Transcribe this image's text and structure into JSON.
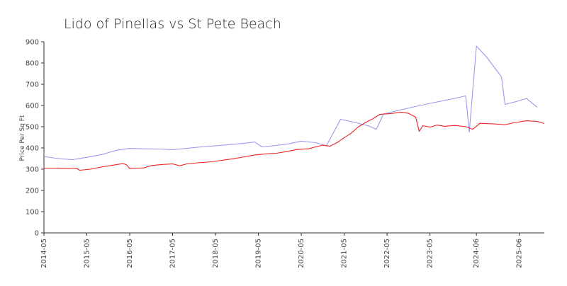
{
  "chart_data": {
    "type": "line",
    "title": "Lido of Pinellas vs St Pete Beach",
    "xlabel": "",
    "ylabel": "Price Per Sq Ft",
    "ylim": [
      0,
      900
    ],
    "yticks": [
      0,
      100,
      200,
      300,
      400,
      500,
      600,
      700,
      800,
      900
    ],
    "xlim": [
      "2014-05",
      "2026-01"
    ],
    "xticks": [
      "2014-05",
      "2015-05",
      "2016-05",
      "2017-05",
      "2018-05",
      "2019-05",
      "2020-05",
      "2021-05",
      "2022-05",
      "2023-05",
      "2024-06",
      "2025-06"
    ],
    "grid": false,
    "legend": "none",
    "series": [
      {
        "color": "#9999ee",
        "points": [
          [
            "2014-05",
            360
          ],
          [
            "2014-09",
            350
          ],
          [
            "2015-01",
            345
          ],
          [
            "2015-05",
            356
          ],
          [
            "2015-09",
            368
          ],
          [
            "2016-01",
            388
          ],
          [
            "2016-05",
            398
          ],
          [
            "2016-09",
            396
          ],
          [
            "2017-01",
            395
          ],
          [
            "2017-05",
            392
          ],
          [
            "2017-09",
            398
          ],
          [
            "2018-01",
            405
          ],
          [
            "2018-05",
            410
          ],
          [
            "2018-09",
            416
          ],
          [
            "2019-01",
            422
          ],
          [
            "2019-04",
            428
          ],
          [
            "2019-06",
            405
          ],
          [
            "2019-09",
            410
          ],
          [
            "2020-01",
            418
          ],
          [
            "2020-05",
            432
          ],
          [
            "2020-09",
            425
          ],
          [
            "2020-12",
            410
          ],
          [
            "2021-04",
            535
          ],
          [
            "2021-08",
            520
          ],
          [
            "2021-12",
            503
          ],
          [
            "2022-02",
            488
          ],
          [
            "2022-04",
            560
          ],
          [
            "2022-07",
            572
          ],
          [
            "2022-11",
            588
          ],
          [
            "2023-05",
            610
          ],
          [
            "2023-11",
            630
          ],
          [
            "2024-03",
            645
          ],
          [
            "2024-04",
            475
          ],
          [
            "2024-06",
            880
          ],
          [
            "2024-09",
            825
          ],
          [
            "2025-01",
            735
          ],
          [
            "2025-02",
            605
          ],
          [
            "2025-05",
            618
          ],
          [
            "2025-08",
            633
          ],
          [
            "2025-11",
            592
          ]
        ]
      },
      {
        "color": "#ee2222",
        "points": [
          [
            "2014-05",
            305
          ],
          [
            "2014-08",
            305
          ],
          [
            "2014-11",
            303
          ],
          [
            "2015-02",
            305
          ],
          [
            "2015-03",
            295
          ],
          [
            "2015-06",
            300
          ],
          [
            "2015-09",
            310
          ],
          [
            "2015-12",
            318
          ],
          [
            "2016-03",
            326
          ],
          [
            "2016-04",
            322
          ],
          [
            "2016-05",
            303
          ],
          [
            "2016-07",
            305
          ],
          [
            "2016-09",
            306
          ],
          [
            "2016-11",
            317
          ],
          [
            "2017-02",
            322
          ],
          [
            "2017-05",
            325
          ],
          [
            "2017-07",
            316
          ],
          [
            "2017-09",
            325
          ],
          [
            "2017-12",
            330
          ],
          [
            "2018-04",
            335
          ],
          [
            "2018-06",
            340
          ],
          [
            "2018-09",
            347
          ],
          [
            "2018-12",
            355
          ],
          [
            "2019-04",
            367
          ],
          [
            "2019-07",
            372
          ],
          [
            "2019-10",
            375
          ],
          [
            "2020-01",
            383
          ],
          [
            "2020-04",
            393
          ],
          [
            "2020-07",
            396
          ],
          [
            "2020-09",
            405
          ],
          [
            "2020-11",
            413
          ],
          [
            "2021-01",
            408
          ],
          [
            "2021-03",
            425
          ],
          [
            "2021-05",
            448
          ],
          [
            "2021-07",
            470
          ],
          [
            "2021-09",
            500
          ],
          [
            "2021-11",
            520
          ],
          [
            "2022-01",
            537
          ],
          [
            "2022-03",
            558
          ],
          [
            "2022-06",
            562
          ],
          [
            "2022-09",
            568
          ],
          [
            "2022-11",
            563
          ],
          [
            "2023-01",
            545
          ],
          [
            "2023-02",
            478
          ],
          [
            "2023-03",
            505
          ],
          [
            "2023-05",
            498
          ],
          [
            "2023-07",
            508
          ],
          [
            "2023-09",
            502
          ],
          [
            "2023-12",
            506
          ],
          [
            "2024-03",
            500
          ],
          [
            "2024-05",
            488
          ],
          [
            "2024-07",
            516
          ],
          [
            "2024-10",
            514
          ],
          [
            "2025-02",
            510
          ],
          [
            "2025-05",
            520
          ],
          [
            "2025-08",
            528
          ],
          [
            "2025-11",
            525
          ],
          [
            "2026-01",
            515
          ]
        ]
      }
    ]
  }
}
